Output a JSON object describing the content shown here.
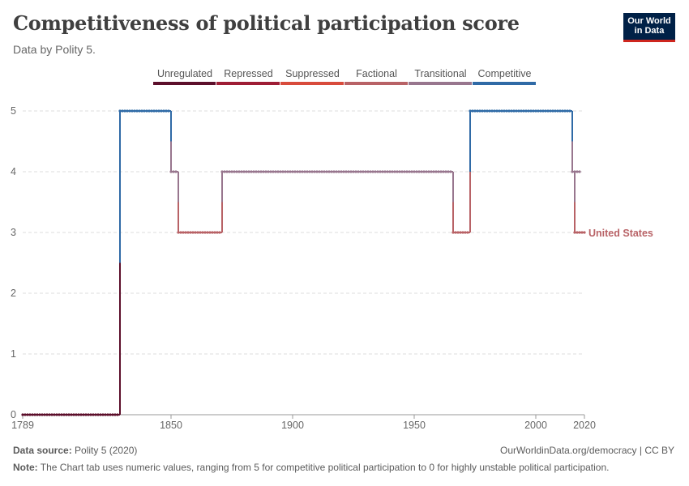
{
  "header": {
    "title": "Competitiveness of political participation score",
    "subtitle": "Data by Polity 5.",
    "logo_line1": "Our World",
    "logo_line2": "in Data"
  },
  "footer": {
    "source_label": "Data source:",
    "source_value": "Polity 5 (2020)",
    "url": "OurWorldinData.org/democracy | CC BY",
    "note_label": "Note:",
    "note_text": "The Chart tab uses numeric values, ranging from 5 for competitive political participation to 0 for highly unstable political participation."
  },
  "chart_data": {
    "type": "line",
    "xlim": [
      1789,
      2020
    ],
    "ylim": [
      0,
      5
    ],
    "x_ticks": [
      1789,
      1850,
      1900,
      1950,
      2000,
      2020
    ],
    "y_ticks": [
      0,
      1,
      2,
      3,
      4,
      5
    ],
    "grid": "horizontal-dashed",
    "legend_placement": "top",
    "legend": [
      {
        "name": "Unregulated",
        "value": 0,
        "color": "#5c0f2b"
      },
      {
        "name": "Repressed",
        "value": 1,
        "color": "#9e1d35"
      },
      {
        "name": "Suppressed",
        "value": 2,
        "color": "#d84b3c"
      },
      {
        "name": "Factional",
        "value": 3,
        "color": "#b86266"
      },
      {
        "name": "Transitional",
        "value": 4,
        "color": "#98768e"
      },
      {
        "name": "Competitive",
        "value": 5,
        "color": "#2f6aa6"
      }
    ],
    "series": [
      {
        "name": "United States",
        "label_color": "#b86266",
        "segments": [
          {
            "from": 1789,
            "to": 1828,
            "value": 0
          },
          {
            "from": 1829,
            "to": 1849,
            "value": 5
          },
          {
            "from": 1850,
            "to": 1852,
            "value": 4
          },
          {
            "from": 1853,
            "to": 1870,
            "value": 3
          },
          {
            "from": 1871,
            "to": 1965,
            "value": 4
          },
          {
            "from": 1966,
            "to": 1972,
            "value": 3
          },
          {
            "from": 1973,
            "to": 2014,
            "value": 5
          },
          {
            "from": 2015,
            "to": 2018,
            "value": 4
          },
          {
            "from": 2016,
            "to": 2020,
            "value": 3
          }
        ]
      }
    ]
  }
}
